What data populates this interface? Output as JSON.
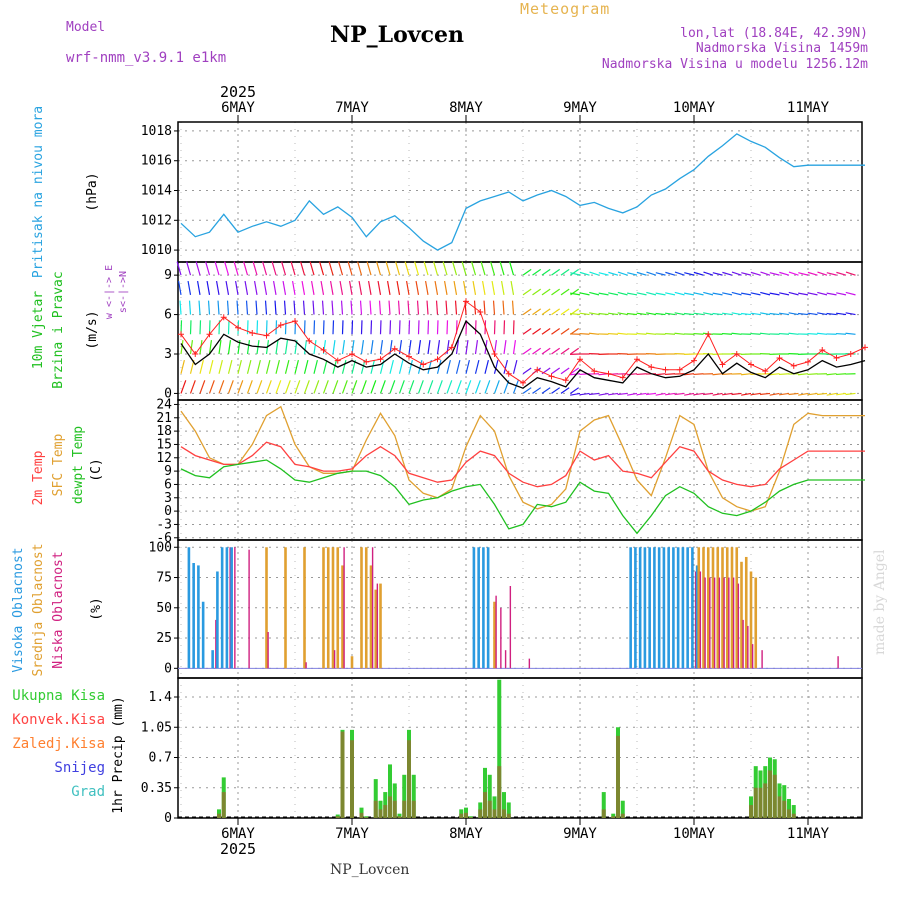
{
  "header": {
    "title": "NP_Lovcen",
    "meteogram_label": "Meteogram",
    "model_label": "Model",
    "model_name": "wrf-nmm_v3.9.1 e1km",
    "lonlat": "lon,lat (18.84E, 42.39N)",
    "elevation": "Nadmorska Visina 1459m",
    "model_elevation": "Nadmorska Visina u modelu 1256.12m",
    "year": "2025",
    "footer": "NP_Lovcen",
    "made_by": "made by Angel"
  },
  "colors": {
    "pressure": "#29a3e0",
    "wind": "#000000",
    "windgust": "#ff2020",
    "t2m": "#ff4040",
    "sfc": "#e0a030",
    "dewpt": "#20c020",
    "high_cloud": "#2a9ae0",
    "mid_cloud": "#e0a030",
    "low_cloud": "#d02080",
    "precip_total": "#33cc33",
    "precip_conv": "#ff4444"
  },
  "days": [
    "6MAY",
    "7MAY",
    "8MAY",
    "9MAY",
    "10MAY",
    "11MAY"
  ],
  "panels": {
    "pressure": {
      "label1": "Pritisak na nivou mora",
      "unit": "(hPa)",
      "ticks": [
        "1010",
        "1012",
        "1014",
        "1016",
        "1018"
      ]
    },
    "wind": {
      "label1": "10m Vjetar",
      "label2": "Brzina i Pravac",
      "unit": "(m/s)",
      "compass": "w <-|-> E",
      "compass2": "s<-|->N",
      "ticks": [
        "0",
        "3",
        "6",
        "9"
      ]
    },
    "temp": {
      "label1": "2m Temp",
      "label2": "SFC Temp",
      "label3": "dewpt Temp",
      "unit": "(C)",
      "ticks": [
        "-6",
        "-3",
        "0",
        "3",
        "6",
        "9",
        "12",
        "15",
        "18",
        "21",
        "24"
      ]
    },
    "cloud": {
      "label1": "Visoka Oblacnost",
      "label2": "Srednja Oblacnost",
      "label3": "Niska Oblacnost",
      "unit": "(%)",
      "ticks": [
        "0",
        "25",
        "50",
        "75",
        "100"
      ]
    },
    "precip": {
      "legend": [
        "Ukupna Kisa",
        "Konvek.Kisa",
        "Zaledj.Kisa",
        "Snijeg",
        "Grad"
      ],
      "legend_colors": [
        "#33cc33",
        "#ff4444",
        "#ff8030",
        "#4040e0",
        "#40c0c0"
      ],
      "unit": "1hr Precip (mm)",
      "ticks": [
        "0",
        "0.35",
        "0.7",
        "1.05",
        "1.4"
      ]
    }
  },
  "chart_data": [
    {
      "type": "line",
      "title": "",
      "ylabel": "Pritisak na nivou mora (hPa)",
      "ylim": [
        1009.2,
        1018.6
      ],
      "x": [
        0,
        3,
        6,
        9,
        12,
        15,
        18,
        21,
        24,
        27,
        30,
        33,
        36,
        39,
        42,
        45,
        48,
        51,
        54,
        57,
        60,
        63,
        66,
        69,
        72,
        75,
        78,
        81,
        84,
        87,
        90,
        93,
        96,
        99,
        102,
        105,
        108,
        111,
        114,
        117,
        120,
        123,
        126,
        129,
        132,
        135,
        138,
        141,
        144
      ],
      "series": [
        {
          "name": "",
          "values": [
            1011.8,
            1010.9,
            1011.2,
            1012.4,
            1011.2,
            1011.6,
            1011.9,
            1011.6,
            1012.0,
            1013.3,
            1012.4,
            1012.9,
            1012.2,
            1010.9,
            1011.9,
            1012.3,
            1011.5,
            1010.6,
            1010.0,
            1010.5,
            1012.8,
            1013.3,
            1013.6,
            1013.9,
            1013.3,
            1013.7,
            1014.0,
            1013.6,
            1013.0,
            1013.2,
            1012.8,
            1012.5,
            1012.9,
            1013.7,
            1014.1,
            1014.8,
            1015.4,
            1016.3,
            1017.0,
            1017.8,
            1017.3,
            1016.9,
            1016.2,
            1015.6,
            1015.7,
            1015.7,
            1015.7,
            1015.7,
            1015.7
          ]
        }
      ]
    },
    {
      "type": "line",
      "title": "",
      "ylabel": "10m Vjetar Brzina i Pravac (m/s)",
      "ylim": [
        -0.5,
        10
      ],
      "x": [
        0,
        3,
        6,
        9,
        12,
        15,
        18,
        21,
        24,
        27,
        30,
        33,
        36,
        39,
        42,
        45,
        48,
        51,
        54,
        57,
        60,
        63,
        66,
        69,
        72,
        75,
        78,
        81,
        84,
        87,
        90,
        93,
        96,
        99,
        102,
        105,
        108,
        111,
        114,
        117,
        120,
        123,
        126,
        129,
        132,
        135,
        138,
        141,
        144
      ],
      "series": [
        {
          "name": "",
          "values": [
            3.8,
            2.2,
            3.0,
            4.5,
            3.9,
            3.6,
            3.5,
            4.2,
            4.0,
            3.0,
            2.6,
            2.0,
            2.5,
            2.0,
            2.2,
            3.0,
            2.3,
            1.8,
            2.0,
            3.0,
            5.5,
            4.5,
            2.0,
            0.8,
            0.4,
            1.2,
            0.9,
            0.5,
            1.8,
            1.2,
            1.0,
            0.8,
            2.0,
            1.5,
            1.2,
            1.3,
            1.8,
            3.0,
            1.5,
            2.3,
            1.6,
            1.2,
            2.0,
            1.5,
            1.8,
            2.5,
            2.0,
            2.2,
            2.5
          ]
        },
        {
          "name": "",
          "values": [
            4.5,
            3.0,
            4.5,
            5.8,
            5.0,
            4.6,
            4.4,
            5.2,
            5.5,
            4.0,
            3.3,
            2.5,
            3.0,
            2.4,
            2.6,
            3.4,
            2.8,
            2.2,
            2.6,
            3.5,
            7.0,
            6.2,
            3.0,
            1.5,
            0.8,
            1.8,
            1.3,
            1.0,
            2.6,
            1.7,
            1.5,
            1.2,
            2.6,
            2.0,
            1.8,
            1.8,
            2.5,
            4.5,
            2.2,
            3.0,
            2.2,
            1.7,
            2.7,
            2.1,
            2.4,
            3.3,
            2.7,
            3.0,
            3.5
          ]
        }
      ]
    },
    {
      "type": "line",
      "title": "",
      "ylabel": "2m Temp SFC Temp dewpt Temp (C)",
      "ylim": [
        -6.5,
        25
      ],
      "x": [
        0,
        3,
        6,
        9,
        12,
        15,
        18,
        21,
        24,
        27,
        30,
        33,
        36,
        39,
        42,
        45,
        48,
        51,
        54,
        57,
        60,
        63,
        66,
        69,
        72,
        75,
        78,
        81,
        84,
        87,
        90,
        93,
        96,
        99,
        102,
        105,
        108,
        111,
        114,
        117,
        120,
        123,
        126,
        129,
        132,
        135,
        138,
        141,
        144
      ],
      "series": [
        {
          "name": "",
          "values": [
            14.5,
            12.5,
            11.5,
            10.5,
            10.5,
            12.5,
            15.5,
            14.5,
            10.5,
            10.0,
            9.0,
            9.0,
            9.5,
            12.5,
            14.5,
            12.5,
            8.5,
            7.5,
            6.5,
            7.0,
            11.0,
            13.5,
            12.5,
            8.5,
            6.5,
            5.5,
            6.0,
            8.0,
            13.5,
            11.5,
            12.5,
            9.0,
            8.5,
            7.5,
            11.0,
            14.5,
            13.5,
            9.0,
            7.0,
            6.0,
            5.5,
            6.0,
            9.5,
            11.5,
            13.5,
            13.5,
            13.5,
            13.5,
            13.5
          ]
        },
        {
          "name": "",
          "values": [
            22.5,
            18.0,
            12.0,
            10.5,
            10.5,
            15.0,
            21.5,
            23.5,
            15.0,
            10.0,
            8.5,
            8.5,
            9.0,
            16.0,
            22.0,
            17.0,
            7.0,
            4.0,
            3.0,
            5.0,
            14.5,
            21.5,
            18.0,
            8.0,
            2.0,
            0.5,
            1.5,
            5.0,
            18.0,
            20.5,
            21.5,
            14.5,
            7.0,
            3.5,
            12.0,
            21.5,
            19.5,
            9.0,
            3.0,
            1.0,
            0.0,
            1.0,
            9.0,
            19.5,
            22.0,
            21.5,
            21.5,
            21.5,
            21.5
          ]
        },
        {
          "name": "",
          "values": [
            9.5,
            8.0,
            7.5,
            10.0,
            10.5,
            11.0,
            11.5,
            9.5,
            7.0,
            6.5,
            7.5,
            8.5,
            9.0,
            9.0,
            8.0,
            5.5,
            1.5,
            2.5,
            3.0,
            4.5,
            5.5,
            6.0,
            1.5,
            -4.0,
            -3.0,
            1.5,
            1.0,
            2.0,
            6.5,
            4.5,
            4.0,
            -1.0,
            -5.0,
            -1.0,
            3.5,
            5.5,
            4.0,
            1.0,
            -0.5,
            -1.0,
            0.0,
            2.0,
            4.5,
            6.0,
            7.0,
            7.0,
            7.0,
            7.0,
            7.0
          ]
        }
      ]
    },
    {
      "type": "bar",
      "title": "",
      "ylabel": "Visoka/Srednja/Niska Oblacnost (%)",
      "ylim": [
        0,
        100
      ],
      "x": [
        2,
        3,
        4,
        5,
        7,
        8,
        9,
        10,
        11,
        14,
        18,
        22,
        26,
        30,
        31,
        32,
        33,
        34,
        36,
        38,
        39,
        40,
        41,
        42,
        47,
        62,
        63,
        64,
        65,
        66,
        67,
        68,
        69,
        73,
        78,
        79,
        80,
        84,
        86,
        90,
        95,
        96,
        97,
        98,
        99,
        100,
        101,
        102,
        103,
        104,
        105,
        106,
        107,
        108,
        109,
        110,
        111,
        112,
        113,
        114,
        115,
        116,
        117,
        118,
        119,
        120,
        121,
        122,
        138
      ],
      "series": [
        {
          "name": "",
          "values": [
            100,
            87,
            85,
            55,
            15,
            80,
            100,
            100,
            100,
            0,
            0,
            0,
            0,
            0,
            0,
            0,
            0,
            0,
            0,
            0,
            0,
            0,
            0,
            0,
            0,
            100,
            100,
            100,
            100,
            0,
            0,
            0,
            0,
            0,
            0,
            0,
            0,
            0,
            0,
            0,
            100,
            100,
            100,
            100,
            100,
            100,
            100,
            100,
            100,
            100,
            100,
            100,
            100,
            100,
            85,
            0,
            0,
            0,
            0,
            0,
            0,
            0,
            0,
            0,
            0,
            0,
            0,
            0,
            0
          ]
        },
        {
          "name": "",
          "values": [
            0,
            0,
            0,
            0,
            0,
            0,
            0,
            0,
            0,
            0,
            100,
            100,
            100,
            100,
            100,
            100,
            100,
            85,
            10,
            100,
            100,
            85,
            65,
            70,
            0,
            0,
            0,
            0,
            0,
            55,
            0,
            0,
            0,
            0,
            0,
            0,
            0,
            0,
            0,
            0,
            0,
            0,
            0,
            0,
            0,
            0,
            0,
            0,
            0,
            0,
            0,
            0,
            0,
            0,
            100,
            100,
            100,
            100,
            100,
            100,
            100,
            100,
            100,
            88,
            92,
            80,
            75,
            0,
            0
          ]
        },
        {
          "name": "",
          "values": [
            0,
            0,
            0,
            0,
            40,
            0,
            0,
            100,
            100,
            98,
            30,
            0,
            5,
            0,
            0,
            15,
            0,
            100,
            0,
            0,
            0,
            100,
            70,
            0,
            0,
            0,
            0,
            0,
            0,
            60,
            50,
            15,
            68,
            8,
            0,
            0,
            0,
            0,
            0,
            0,
            0,
            0,
            0,
            0,
            0,
            0,
            0,
            0,
            0,
            0,
            0,
            0,
            0,
            80,
            80,
            75,
            75,
            75,
            75,
            75,
            75,
            75,
            70,
            40,
            35,
            20,
            0,
            15,
            10
          ]
        }
      ]
    },
    {
      "type": "bar",
      "title": "",
      "ylabel": "1hr Precip (mm)",
      "ylim": [
        0,
        1.6
      ],
      "x": [
        8,
        9,
        33,
        34,
        36,
        38,
        39,
        41,
        42,
        43,
        44,
        45,
        46,
        47,
        48,
        49,
        59,
        60,
        61,
        63,
        64,
        65,
        66,
        67,
        68,
        69,
        89,
        91,
        92,
        93,
        120,
        121,
        122,
        123,
        124,
        125,
        126,
        127,
        128,
        129
      ],
      "series": [
        {
          "name": "Ukupna Kisa",
          "values": [
            0.1,
            0.47,
            0.04,
            1.02,
            1.02,
            0.12,
            0.02,
            0.45,
            0.2,
            0.3,
            0.62,
            0.4,
            0.05,
            0.5,
            1.02,
            0.5,
            0.1,
            0.12,
            0.02,
            0.18,
            0.58,
            0.5,
            0.25,
            1.6,
            0.3,
            0.18,
            0.3,
            0.05,
            1.05,
            0.2,
            0.25,
            0.6,
            0.55,
            0.6,
            0.7,
            0.68,
            0.4,
            0.38,
            0.22,
            0.15
          ]
        },
        {
          "name": "Konvek.Kisa",
          "values": [
            0.05,
            0.3,
            0.02,
            1.0,
            0.9,
            0.06,
            0.01,
            0.2,
            0.1,
            0.15,
            0.25,
            0.2,
            0.02,
            0.2,
            0.9,
            0.2,
            0.05,
            0.06,
            0.01,
            0.1,
            0.3,
            0.2,
            0.1,
            0.6,
            0.1,
            0.05,
            0.1,
            0.02,
            0.95,
            0.05,
            0.15,
            0.35,
            0.35,
            0.4,
            0.55,
            0.5,
            0.25,
            0.2,
            0.1,
            0.05
          ]
        }
      ]
    }
  ]
}
